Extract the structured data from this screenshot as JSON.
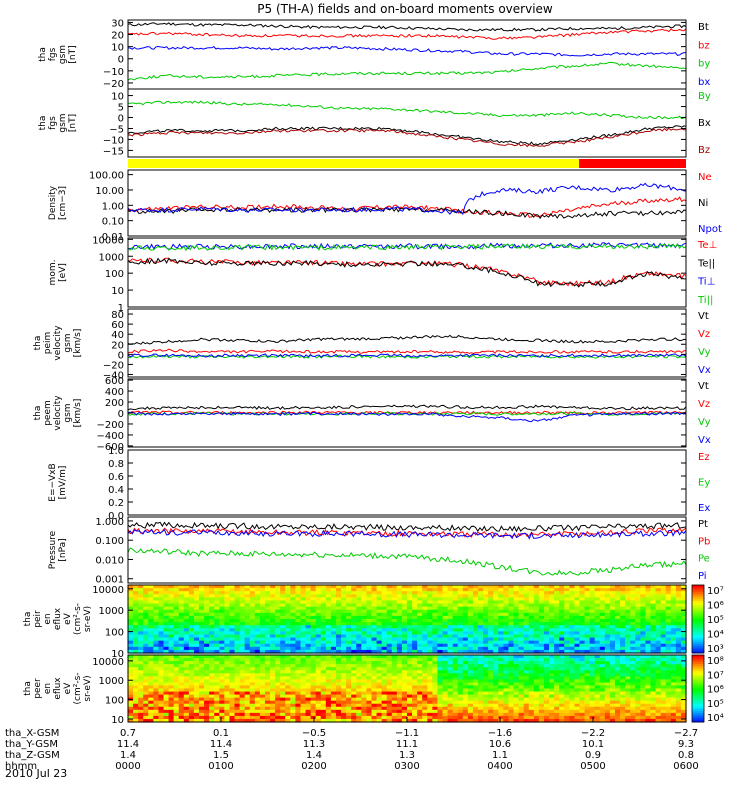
{
  "title": "P5 (TH-A) fields and on-board moments overview",
  "chart_data": [
    {
      "type": "line",
      "ylabel": [
        "tha",
        "fgs",
        "gsm",
        "[nT]"
      ],
      "ylim": [
        -25,
        32
      ],
      "yticks": [
        30,
        20,
        10,
        0,
        -10,
        -20
      ],
      "yticklabels": [
        "30",
        "20",
        "10",
        "0",
        "−10",
        "−20"
      ],
      "series": [
        {
          "name": "Bt",
          "color": "#000000",
          "values": [
            28,
            29,
            28,
            28,
            27,
            26,
            26,
            26,
            25,
            24,
            24,
            24,
            25,
            25,
            26,
            27
          ]
        },
        {
          "name": "bz",
          "color": "#ff0000",
          "values": [
            20,
            21,
            20,
            19,
            19,
            19,
            19,
            19,
            19,
            18,
            17,
            18,
            20,
            22,
            23,
            24
          ]
        },
        {
          "name": "by",
          "color": "#00cc00",
          "values": [
            -17,
            -14,
            -15,
            -15,
            -14,
            -13,
            -12,
            -12,
            -12,
            -12,
            -11,
            -8,
            -6,
            -4,
            -6,
            -8
          ]
        },
        {
          "name": "bx",
          "color": "#0000ff",
          "values": [
            9,
            9,
            9,
            9,
            8,
            9,
            9,
            8,
            7,
            6,
            4,
            4,
            3,
            4,
            4,
            4
          ]
        }
      ]
    },
    {
      "type": "line",
      "ylabel": [
        "tha",
        "fgs",
        "gsm",
        "[nT]"
      ],
      "ylim": [
        -18,
        13
      ],
      "yticks": [
        10,
        5,
        0,
        -5,
        -10,
        -15
      ],
      "yticklabels": [
        "10",
        "5",
        "0",
        "−5",
        "−10",
        "−15"
      ],
      "series": [
        {
          "name": "By",
          "color": "#00cc00",
          "values": [
            6,
            7,
            7,
            6,
            6,
            5,
            4,
            4,
            3,
            2,
            1,
            1,
            2,
            1,
            0,
            0
          ]
        },
        {
          "name": "Bx",
          "color": "#000000",
          "values": [
            -7,
            -6,
            -6,
            -6,
            -5,
            -5,
            -5,
            -5,
            -7,
            -9,
            -11,
            -12,
            -10,
            -8,
            -5,
            -4
          ]
        },
        {
          "name": "Bz",
          "color": "#aa0000",
          "values": [
            -8,
            -7,
            -7,
            -7,
            -6,
            -6,
            -6,
            -6,
            -8,
            -10,
            -12,
            -13,
            -11,
            -9,
            -6,
            -5
          ]
        }
      ]
    },
    {
      "type": "bar",
      "yellow_until_hour": 4.85,
      "colors": [
        "#ffff00",
        "#ff0000"
      ]
    },
    {
      "type": "line",
      "log": true,
      "ylabel": [
        "Density",
        "[cm−3]"
      ],
      "ylim": [
        0.01,
        200
      ],
      "yticks": [
        100,
        10,
        1,
        0.1,
        0.01
      ],
      "yticklabels": [
        "100.00",
        "10.00",
        "1.00",
        "0.10",
        "0.01"
      ],
      "series": [
        {
          "name": "Ne",
          "color": "#ff0000",
          "values": [
            0.5,
            0.6,
            0.8,
            0.7,
            0.9,
            0.7,
            0.6,
            0.8,
            0.7,
            0.4,
            0.3,
            0.2,
            0.5,
            1.2,
            2.0,
            2.5
          ]
        },
        {
          "name": "Ni",
          "color": "#000000",
          "values": [
            0.4,
            0.4,
            0.5,
            0.5,
            0.5,
            0.5,
            0.5,
            0.5,
            0.5,
            0.4,
            0.3,
            0.2,
            0.2,
            0.3,
            0.3,
            0.4
          ]
        },
        {
          "name": "Npot",
          "color": "#0000ff",
          "values": [
            0.5,
            0.5,
            0.6,
            0.5,
            0.5,
            0.5,
            0.5,
            0.6,
            0.5,
            0.3,
            10,
            8,
            15,
            10,
            20,
            10
          ]
        }
      ]
    },
    {
      "type": "line",
      "log": true,
      "ylabel": [
        "mom.",
        "[eV]"
      ],
      "ylim": [
        1,
        12000
      ],
      "yticks": [
        10000,
        1000,
        100,
        10,
        1
      ],
      "yticklabels": [
        "10000",
        "1000",
        "100",
        "10",
        "1"
      ],
      "series": [
        {
          "name": "Te⊥",
          "color": "#ff0000",
          "values": [
            500,
            600,
            450,
            450,
            400,
            420,
            350,
            350,
            400,
            300,
            120,
            30,
            25,
            30,
            100,
            60
          ]
        },
        {
          "name": "Te||",
          "color": "#000000",
          "values": [
            450,
            550,
            400,
            400,
            380,
            400,
            320,
            330,
            380,
            280,
            100,
            25,
            20,
            25,
            90,
            50
          ]
        },
        {
          "name": "Ti⊥",
          "color": "#0000ff",
          "values": [
            3500,
            3600,
            3700,
            3800,
            3800,
            3800,
            3800,
            3900,
            3900,
            4000,
            4200,
            4300,
            4300,
            4400,
            4400,
            4500
          ]
        },
        {
          "name": "Ti||",
          "color": "#00cc00",
          "values": [
            3000,
            3100,
            3200,
            3300,
            3300,
            3300,
            3300,
            3400,
            3400,
            3500,
            3600,
            3700,
            3700,
            3800,
            3800,
            3900
          ]
        }
      ]
    },
    {
      "type": "line",
      "ylabel": [
        "tha",
        "peim",
        "velocity",
        "gsm",
        "[km/s]"
      ],
      "ylim": [
        -45,
        90
      ],
      "yticks": [
        80,
        60,
        40,
        20,
        0,
        -20,
        -40
      ],
      "yticklabels": [
        "80",
        "60",
        "40",
        "20",
        "0",
        "−20",
        "−40"
      ],
      "series": [
        {
          "name": "Vt",
          "color": "#000000",
          "values": [
            20,
            25,
            30,
            28,
            25,
            30,
            30,
            32,
            35,
            35,
            30,
            28,
            25,
            25,
            30,
            30
          ]
        },
        {
          "name": "Vz",
          "color": "#ff0000",
          "values": [
            5,
            8,
            5,
            5,
            6,
            5,
            5,
            5,
            5,
            4,
            5,
            5,
            5,
            5,
            5,
            5
          ]
        },
        {
          "name": "Vy",
          "color": "#00cc00",
          "values": [
            -5,
            -4,
            -5,
            -5,
            -4,
            -5,
            -4,
            -5,
            -5,
            -4,
            -5,
            -4,
            -5,
            -5,
            -4,
            -5
          ]
        },
        {
          "name": "Vx",
          "color": "#0000ff",
          "values": [
            -2,
            -2,
            -3,
            -2,
            -2,
            -3,
            -2,
            -2,
            -3,
            -2,
            -2,
            -3,
            -2,
            -2,
            -2,
            -2
          ]
        }
      ]
    },
    {
      "type": "line",
      "ylabel": [
        "tha",
        "peem",
        "velocity",
        "gsm",
        "[km/s]"
      ],
      "ylim": [
        -620,
        620
      ],
      "yticks": [
        600,
        400,
        200,
        0,
        -200,
        -400,
        -600
      ],
      "yticklabels": [
        "600",
        "400",
        "200",
        "0",
        "−200",
        "−400",
        "−600"
      ],
      "series": [
        {
          "name": "Vt",
          "color": "#000000",
          "values": [
            80,
            90,
            100,
            100,
            90,
            100,
            110,
            120,
            120,
            110,
            100,
            120,
            100,
            80,
            90,
            90
          ]
        },
        {
          "name": "Vz",
          "color": "#ff0000",
          "values": [
            10,
            10,
            5,
            5,
            10,
            10,
            5,
            5,
            10,
            10,
            5,
            10,
            5,
            5,
            10,
            10
          ]
        },
        {
          "name": "Vy",
          "color": "#00cc00",
          "values": [
            -20,
            -10,
            -10,
            -20,
            -10,
            -20,
            -10,
            -10,
            -20,
            -10,
            -20,
            -10,
            -10,
            -20,
            -10,
            -10
          ]
        },
        {
          "name": "Vx",
          "color": "#0000ff",
          "values": [
            -10,
            -20,
            -10,
            -10,
            -20,
            -10,
            -10,
            -20,
            -10,
            -60,
            -80,
            -150,
            -40,
            -20,
            -10,
            -10
          ]
        }
      ]
    },
    {
      "type": "line",
      "ylabel": [
        "E=−VxB",
        "[mV/m]"
      ],
      "ylim": [
        0,
        1
      ],
      "yticks": [
        1.0,
        0.8,
        0.6,
        0.4,
        0.2,
        0.0
      ],
      "yticklabels": [
        "1.0",
        "0.8",
        "0.6",
        "0.4",
        "0.2",
        "0.0"
      ],
      "series": [
        {
          "name": "Ez",
          "color": "#ff0000",
          "values": []
        },
        {
          "name": "Ey",
          "color": "#00cc00",
          "values": []
        },
        {
          "name": "Ex",
          "color": "#0000ff",
          "values": []
        }
      ]
    },
    {
      "type": "line",
      "log": true,
      "ylabel": [
        "Pressure",
        "[nPa]"
      ],
      "ylim": [
        0.0006,
        1.6
      ],
      "yticks": [
        1,
        0.1,
        0.01,
        0.001
      ],
      "yticklabels": [
        "1.000",
        "0.100",
        "0.010",
        "0.001"
      ],
      "series": [
        {
          "name": "Pt",
          "color": "#000000",
          "values": [
            0.6,
            0.6,
            0.55,
            0.55,
            0.5,
            0.5,
            0.5,
            0.45,
            0.45,
            0.4,
            0.4,
            0.4,
            0.45,
            0.5,
            0.55,
            0.6
          ]
        },
        {
          "name": "Pb",
          "color": "#ff0000",
          "values": [
            0.3,
            0.3,
            0.28,
            0.28,
            0.25,
            0.25,
            0.25,
            0.23,
            0.22,
            0.2,
            0.2,
            0.2,
            0.22,
            0.25,
            0.3,
            0.35
          ]
        },
        {
          "name": "Pe",
          "color": "#00cc00",
          "values": [
            0.03,
            0.025,
            0.02,
            0.02,
            0.018,
            0.018,
            0.016,
            0.015,
            0.012,
            0.008,
            0.004,
            0.002,
            0.002,
            0.003,
            0.005,
            0.006
          ]
        },
        {
          "name": "Pi",
          "color": "#0000ff",
          "values": [
            0.25,
            0.25,
            0.24,
            0.24,
            0.22,
            0.22,
            0.22,
            0.2,
            0.2,
            0.19,
            0.18,
            0.17,
            0.18,
            0.2,
            0.22,
            0.25
          ]
        }
      ]
    },
    {
      "type": "heatmap",
      "ylabel": [
        "tha",
        "peir",
        "en",
        "eflux",
        "eV",
        "(cm²-s-",
        "sr-eV)"
      ],
      "yscale": "log",
      "ylim": [
        10,
        15000
      ],
      "yticks": [
        10000,
        1000,
        100,
        10
      ],
      "yticklabels": [
        "10000",
        "1000",
        "100",
        "10"
      ],
      "colorbar": {
        "ticks": [
          "10⁷",
          "10⁶",
          "10⁵",
          "10⁴",
          "10³"
        ]
      }
    },
    {
      "type": "heatmap",
      "ylabel": [
        "tha",
        "peer",
        "en",
        "eflux",
        "eV",
        "(cm²-s-",
        "sr-eV)"
      ],
      "yscale": "log",
      "ylim": [
        7,
        20000
      ],
      "yticks": [
        10000,
        1000,
        100,
        10
      ],
      "yticklabels": [
        "10000",
        "1000",
        "100",
        "10"
      ],
      "colorbar": {
        "ticks": [
          "10⁸",
          "10⁷",
          "10⁶",
          "10⁵",
          "10⁴"
        ]
      }
    }
  ],
  "x_axis": {
    "columns": [
      [
        "0.7",
        "11.4",
        "1.4",
        "0000"
      ],
      [
        "0.1",
        "11.4",
        "1.5",
        "0100"
      ],
      [
        "−0.5",
        "11.3",
        "1.4",
        "0200"
      ],
      [
        "−1.1",
        "11.1",
        "1.3",
        "0300"
      ],
      [
        "−1.6",
        "10.6",
        "1.1",
        "0400"
      ],
      [
        "−2.2",
        "10.1",
        "0.9",
        "0500"
      ],
      [
        "−2.7",
        "9.3",
        "0.8",
        "0600"
      ]
    ],
    "row_labels": [
      "tha_X-GSM",
      "tha_Y-GSM",
      "tha_Z-GSM",
      "hhmm"
    ],
    "date": "2010 Jul 23"
  }
}
